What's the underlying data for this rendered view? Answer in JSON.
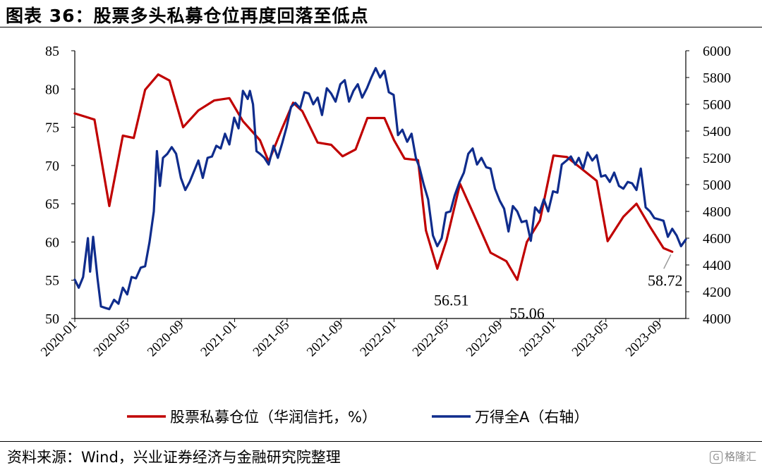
{
  "title": "图表 36：股票多头私募仓位再度回落至低点",
  "source": "资料来源：Wind，兴业证券经济与金融研究院整理",
  "watermark": "格隆汇",
  "colors": {
    "red": "#C00000",
    "blue": "#0F2C8C"
  },
  "chart_data": {
    "type": "line",
    "x_tick_labels": [
      "2020-01",
      "2020-05",
      "2020-09",
      "2021-01",
      "2021-05",
      "2021-09",
      "2022-01",
      "2022-05",
      "2022-09",
      "2023-01",
      "2023-05",
      "2023-09"
    ],
    "x_range": [
      "2020-01-01",
      "2023-10-31"
    ],
    "left_axis": {
      "min": 50,
      "max": 85,
      "ticks": [
        50,
        55,
        60,
        65,
        70,
        75,
        80,
        85
      ]
    },
    "right_axis": {
      "min": 4000,
      "max": 6000,
      "ticks": [
        4000,
        4200,
        4400,
        4600,
        4800,
        5000,
        5200,
        5400,
        5600,
        5800,
        6000
      ]
    },
    "series": [
      {
        "name": "股票私募仓位（华润信托，%）",
        "axis": "left",
        "color": "#C00000",
        "x": [
          "2020-01-01",
          "2020-02-15",
          "2020-03-20",
          "2020-04-20",
          "2020-05-15",
          "2020-06-10",
          "2020-07-10",
          "2020-08-05",
          "2020-09-05",
          "2020-10-10",
          "2020-11-15",
          "2020-12-20",
          "2021-01-20",
          "2021-02-28",
          "2021-03-20",
          "2021-04-20",
          "2021-05-15",
          "2021-06-05",
          "2021-07-10",
          "2021-08-10",
          "2021-09-05",
          "2021-10-05",
          "2021-11-01",
          "2021-12-10",
          "2022-01-01",
          "2022-01-25",
          "2022-02-25",
          "2022-03-15",
          "2022-04-10",
          "2022-05-01",
          "2022-06-01",
          "2022-07-01",
          "2022-08-10",
          "2022-09-15",
          "2022-10-10",
          "2022-11-01",
          "2022-12-01",
          "2023-01-01",
          "2023-02-01",
          "2023-02-25",
          "2023-04-10",
          "2023-05-05",
          "2023-06-10",
          "2023-07-10",
          "2023-08-10",
          "2023-09-10",
          "2023-09-30"
        ],
        "y": [
          76.8,
          76.0,
          64.7,
          73.9,
          73.6,
          79.9,
          81.9,
          81.1,
          75.0,
          77.2,
          78.5,
          78.8,
          75.8,
          73.3,
          70.5,
          74.9,
          78.2,
          77.1,
          73.0,
          72.7,
          71.2,
          72.1,
          76.2,
          76.2,
          73.3,
          70.9,
          70.7,
          61.5,
          56.51,
          60.2,
          67.6,
          63.8,
          58.6,
          57.5,
          55.06,
          60.0,
          62.8,
          71.3,
          71.1,
          70.0,
          68.0,
          60.1,
          63.3,
          65.0,
          62.0,
          59.2,
          58.72
        ]
      },
      {
        "name": "万得全A（右轴）",
        "axis": "right",
        "color": "#0F2C8C",
        "x": [
          "2020-01-01",
          "2020-01-10",
          "2020-01-20",
          "2020-01-31",
          "2020-02-05",
          "2020-02-12",
          "2020-02-22",
          "2020-03-01",
          "2020-03-10",
          "2020-03-20",
          "2020-03-31",
          "2020-04-10",
          "2020-04-20",
          "2020-04-30",
          "2020-05-10",
          "2020-05-20",
          "2020-05-31",
          "2020-06-10",
          "2020-06-20",
          "2020-06-30",
          "2020-07-07",
          "2020-07-14",
          "2020-07-21",
          "2020-07-31",
          "2020-08-10",
          "2020-08-20",
          "2020-08-31",
          "2020-09-10",
          "2020-09-20",
          "2020-09-30",
          "2020-10-10",
          "2020-10-20",
          "2020-10-31",
          "2020-11-10",
          "2020-11-20",
          "2020-11-30",
          "2020-12-10",
          "2020-12-20",
          "2020-12-31",
          "2021-01-10",
          "2021-01-20",
          "2021-01-31",
          "2021-02-05",
          "2021-02-12",
          "2021-02-20",
          "2021-02-28",
          "2021-03-10",
          "2021-03-20",
          "2021-03-31",
          "2021-04-10",
          "2021-04-20",
          "2021-04-30",
          "2021-05-10",
          "2021-05-20",
          "2021-05-31",
          "2021-06-10",
          "2021-06-20",
          "2021-06-30",
          "2021-07-10",
          "2021-07-20",
          "2021-07-31",
          "2021-08-10",
          "2021-08-20",
          "2021-08-31",
          "2021-09-10",
          "2021-09-20",
          "2021-09-30",
          "2021-10-10",
          "2021-10-20",
          "2021-10-31",
          "2021-11-10",
          "2021-11-20",
          "2021-11-30",
          "2021-12-10",
          "2021-12-20",
          "2021-12-31",
          "2022-01-10",
          "2022-01-20",
          "2022-01-31",
          "2022-02-10",
          "2022-02-20",
          "2022-02-28",
          "2022-03-10",
          "2022-03-20",
          "2022-03-31",
          "2022-04-10",
          "2022-04-20",
          "2022-04-30",
          "2022-05-10",
          "2022-05-20",
          "2022-05-31",
          "2022-06-10",
          "2022-06-20",
          "2022-06-30",
          "2022-07-10",
          "2022-07-20",
          "2022-07-31",
          "2022-08-10",
          "2022-08-20",
          "2022-08-31",
          "2022-09-10",
          "2022-09-20",
          "2022-09-30",
          "2022-10-10",
          "2022-10-20",
          "2022-10-31",
          "2022-11-10",
          "2022-11-20",
          "2022-11-30",
          "2022-12-10",
          "2022-12-20",
          "2022-12-31",
          "2023-01-10",
          "2023-01-20",
          "2023-01-31",
          "2023-02-10",
          "2023-02-20",
          "2023-02-28",
          "2023-03-10",
          "2023-03-20",
          "2023-03-31",
          "2023-04-10",
          "2023-04-20",
          "2023-04-30",
          "2023-05-10",
          "2023-05-20",
          "2023-05-31",
          "2023-06-10",
          "2023-06-20",
          "2023-06-30",
          "2023-07-10",
          "2023-07-20",
          "2023-07-31",
          "2023-08-10",
          "2023-08-20",
          "2023-08-31",
          "2023-09-10",
          "2023-09-20",
          "2023-09-30",
          "2023-10-10",
          "2023-10-20",
          "2023-10-31"
        ],
        "y": [
          4290,
          4230,
          4310,
          4600,
          4350,
          4610,
          4300,
          4090,
          4080,
          4070,
          4140,
          4110,
          4230,
          4180,
          4310,
          4300,
          4380,
          4390,
          4570,
          4800,
          5250,
          4990,
          5200,
          5230,
          5280,
          5230,
          5050,
          4960,
          5020,
          5100,
          5180,
          5050,
          5200,
          5210,
          5290,
          5270,
          5380,
          5300,
          5500,
          5420,
          5700,
          5640,
          5700,
          5600,
          5250,
          5230,
          5200,
          5150,
          5290,
          5200,
          5310,
          5430,
          5580,
          5610,
          5570,
          5690,
          5680,
          5600,
          5650,
          5520,
          5720,
          5680,
          5620,
          5750,
          5780,
          5620,
          5700,
          5750,
          5650,
          5720,
          5800,
          5870,
          5800,
          5850,
          5690,
          5670,
          5370,
          5410,
          5320,
          5380,
          5200,
          5130,
          5000,
          4890,
          4620,
          4540,
          4600,
          4790,
          4800,
          4920,
          5020,
          5090,
          5230,
          5270,
          5150,
          5200,
          5130,
          5120,
          4970,
          4880,
          4820,
          4650,
          4840,
          4800,
          4720,
          4730,
          4580,
          4830,
          4790,
          4890,
          4800,
          4950,
          4940,
          5150,
          5180,
          5210,
          5150,
          5200,
          5120,
          5240,
          5180,
          5220,
          5060,
          5070,
          5020,
          5090,
          4990,
          4970,
          5020,
          5010,
          4960,
          5120,
          4830,
          4800,
          4750,
          4740,
          4730,
          4610,
          4670,
          4620,
          4540,
          4590
        ]
      }
    ],
    "annotations": [
      {
        "text": "56.51",
        "x": "2022-04-10",
        "y": 56.51,
        "axis": "left"
      },
      {
        "text": "55.06",
        "x": "2022-10-10",
        "y": 55.06,
        "axis": "left"
      },
      {
        "text": "58.72",
        "x": "2023-09-30",
        "y": 58.72,
        "axis": "left"
      }
    ],
    "legend": {
      "position": "bottom",
      "entries": [
        "股票私募仓位（华润信托，%）",
        "万得全A（右轴）"
      ]
    }
  }
}
